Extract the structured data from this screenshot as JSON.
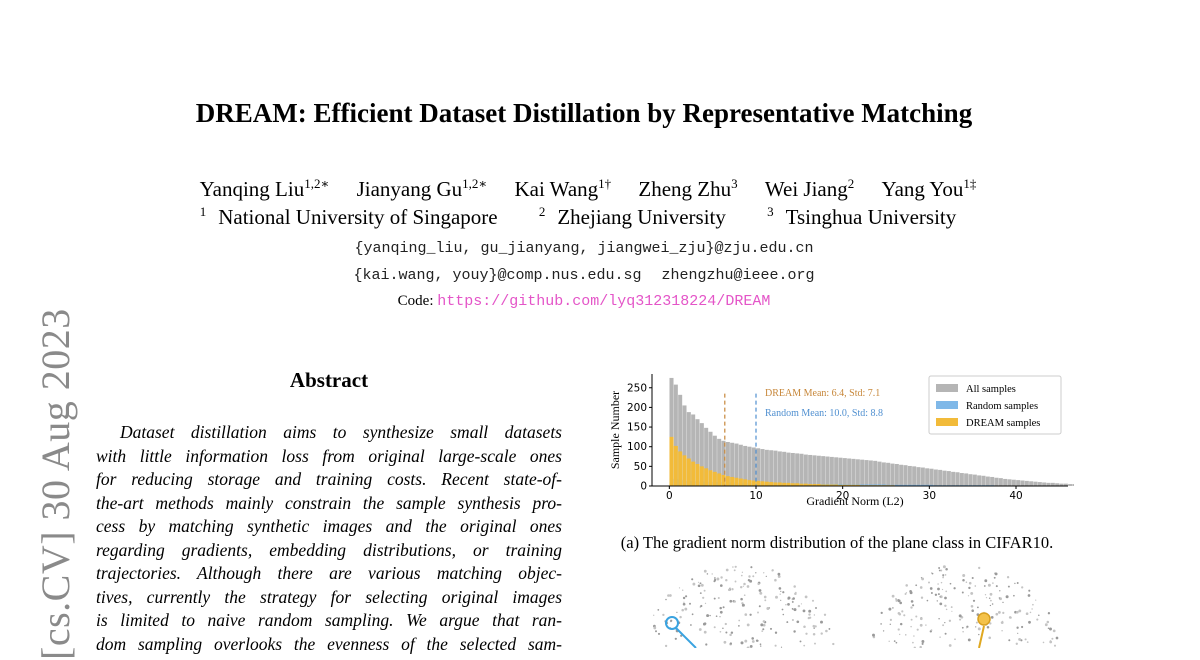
{
  "arxiv_stamp": "[cs.CV]  30 Aug 2023",
  "title": "DREAM: Efficient Dataset Distillation by Representative Matching",
  "authors": [
    {
      "name": "Yanqing Liu",
      "sup": "1,2∗"
    },
    {
      "name": "Jianyang Gu",
      "sup": "1,2∗"
    },
    {
      "name": "Kai Wang",
      "sup": "1†"
    },
    {
      "name": "Zheng Zhu",
      "sup": "3"
    },
    {
      "name": "Wei Jiang",
      "sup": "2"
    },
    {
      "name": "Yang You",
      "sup": "1‡"
    }
  ],
  "affiliations": [
    {
      "sup": "1",
      "name": "National University of Singapore"
    },
    {
      "sup": "2",
      "name": "Zhejiang University"
    },
    {
      "sup": "3",
      "name": "Tsinghua University"
    }
  ],
  "emails": {
    "line1": "{yanqing_liu, gu_jianyang, jiangwei_zju}@zju.edu.cn",
    "line2a": "{kai.wang, youy}@comp.nus.edu.sg",
    "line2b": "zhengzhu@ieee.org"
  },
  "code": {
    "label": "Code:",
    "url": "https://github.com/lyq312318224/DREAM"
  },
  "abstract": {
    "heading": "Abstract",
    "lines": [
      "Dataset distillation aims to synthesize small datasets",
      "with little information loss from original large-scale ones",
      "for reducing storage and training costs.  Recent state-of-",
      "the-art methods mainly constrain the sample synthesis pro-",
      "cess by matching synthetic images and the original ones",
      "regarding gradients, embedding distributions, or training",
      "trajectories.  Although there are various matching objec-",
      "tives, currently the strategy for selecting original images",
      "is limited to naive random sampling.  We argue that ran-",
      "dom sampling overlooks the evenness of the selected sam-"
    ]
  },
  "figure_caption": "(a) The gradient norm distribution of the plane class in CIFAR10.",
  "chart_data": {
    "type": "bar",
    "xlabel": "Gradient Norm (L2)",
    "ylabel": "Sample Number",
    "xlim": [
      -2,
      46
    ],
    "ylim": [
      0,
      285
    ],
    "xticks": [
      0,
      10,
      20,
      30,
      40
    ],
    "yticks": [
      0,
      50,
      100,
      150,
      200,
      250
    ],
    "legend_position": "top-right",
    "bin_width": 0.5,
    "series": [
      {
        "name": "All samples",
        "color": "#b5b5b5",
        "values": [
          275,
          258,
          232,
          205,
          188,
          182,
          170,
          160,
          148,
          138,
          128,
          120,
          115,
          112,
          110,
          108,
          105,
          102,
          100,
          98,
          96,
          94,
          92,
          91,
          90,
          88,
          87,
          85,
          84,
          83,
          82,
          80,
          79,
          78,
          77,
          76,
          75,
          74,
          73,
          72,
          71,
          70,
          69,
          68,
          67,
          66,
          65,
          64,
          62,
          60,
          59,
          57,
          56,
          54,
          53,
          51,
          50,
          48,
          47,
          45,
          44,
          42,
          41,
          39,
          38,
          36,
          35,
          33,
          32,
          30,
          29,
          27,
          26,
          24,
          23,
          21,
          20,
          18,
          17,
          16,
          15,
          14,
          13,
          12,
          11,
          10,
          9,
          8,
          8,
          7,
          6,
          6,
          5,
          5,
          4,
          4,
          3,
          3,
          2,
          2
        ]
      },
      {
        "name": "Random samples",
        "color": "#7fb8e8",
        "values": [
          20,
          18,
          16,
          14,
          13,
          12,
          12,
          11,
          11,
          10,
          10,
          10,
          9,
          9,
          9,
          8,
          8,
          8,
          8,
          7,
          7,
          7,
          7,
          7,
          6,
          6,
          6,
          6,
          6,
          6,
          6,
          5,
          5,
          5,
          5,
          5,
          5,
          5,
          5,
          5,
          4,
          4,
          4,
          4,
          4,
          4,
          4,
          4,
          4,
          4,
          3,
          3,
          3,
          3,
          3,
          3,
          3,
          3,
          3,
          3,
          3,
          2,
          2,
          2,
          2,
          2,
          2,
          2,
          2,
          2,
          2,
          2,
          2,
          2,
          2,
          1,
          1,
          1,
          1,
          1,
          1,
          1,
          1,
          1,
          1,
          1,
          1,
          1,
          1,
          1,
          1,
          1,
          0,
          0,
          0,
          0,
          0,
          0,
          0,
          0
        ]
      },
      {
        "name": "DREAM samples",
        "color": "#f2bb3a",
        "values": [
          125,
          102,
          88,
          78,
          70,
          62,
          56,
          50,
          45,
          40,
          36,
          32,
          28,
          25,
          23,
          21,
          19,
          17,
          15,
          14,
          13,
          12,
          11,
          10,
          9,
          9,
          8,
          8,
          7,
          7,
          6,
          6,
          5,
          5,
          5,
          4,
          4,
          4,
          4,
          3,
          3,
          3,
          3,
          3,
          2,
          2,
          2,
          2,
          2,
          2,
          2,
          2,
          1,
          1,
          1,
          1,
          1,
          1,
          1,
          1,
          1,
          1,
          1,
          1,
          1,
          1,
          0,
          0,
          0,
          0,
          0,
          0,
          0,
          0,
          0,
          0,
          0,
          0,
          0,
          0,
          0,
          0,
          0,
          0,
          0,
          0,
          0,
          0,
          0,
          0,
          0,
          0,
          0,
          0,
          0,
          0,
          0,
          0,
          0,
          0
        ]
      }
    ],
    "reference_lines": [
      {
        "label": "DREAM Mean: 6.4, Std: 7.1",
        "x": 6.4,
        "color": "#c7873a"
      },
      {
        "label": "Random Mean: 10.0, Std: 8.8",
        "x": 10.0,
        "color": "#4f8fd0"
      }
    ]
  }
}
